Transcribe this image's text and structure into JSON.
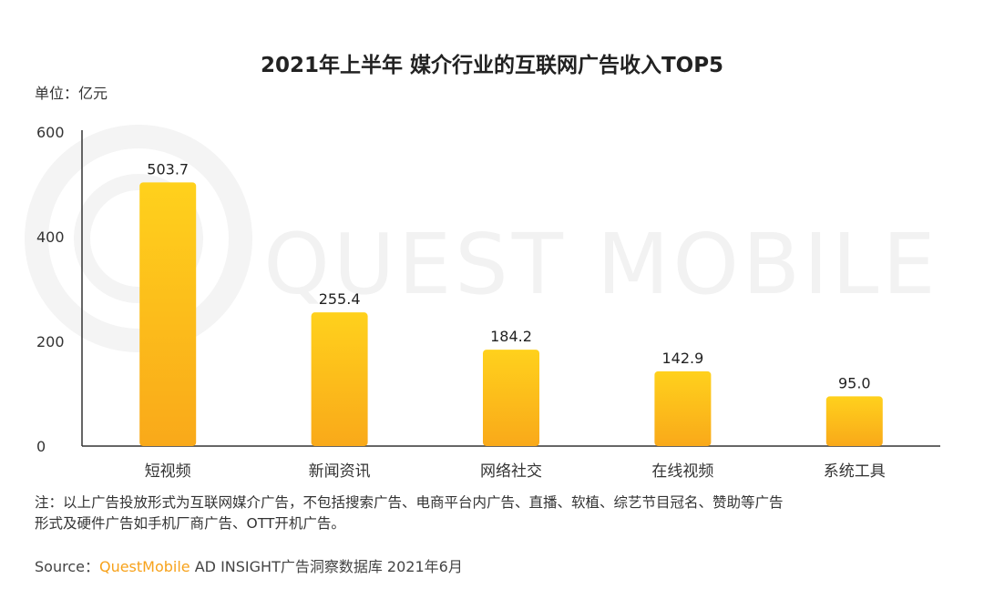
{
  "watermark": "QUEST MOBILE",
  "unit_label": "单位：亿元",
  "footnote_line1": "注：以上广告投放形式为互联网媒介广告，不包括搜索广告、电商平台内广告、直播、软植、综艺节目冠名、赞助等广告",
  "footnote_line2": "形式及硬件广告如手机厂商广告、OTT开机广告。",
  "source": {
    "prefix": "Source：",
    "brand": "QuestMobile",
    "rest": " AD INSIGHT广告洞察数据库 2021年6月"
  },
  "colors": {
    "bar_top": "#ffd11c",
    "bar_bottom": "#f9a91a",
    "axis": "#333333",
    "brand": "#f7a21b"
  },
  "chart_data": {
    "type": "bar",
    "title": "2021年上半年 媒介行业的互联网广告收入TOP5",
    "xlabel": "",
    "ylabel": "单位：亿元",
    "categories": [
      "短视频",
      "新闻资讯",
      "网络社交",
      "在线视频",
      "系统工具"
    ],
    "values": [
      503.7,
      255.4,
      184.2,
      142.9,
      95.0
    ],
    "value_labels": [
      "503.7",
      "255.4",
      "184.2",
      "142.9",
      "95.0"
    ],
    "ylim": [
      0,
      600
    ],
    "yticks": [
      0,
      200,
      400,
      600
    ],
    "grid": false,
    "legend": false
  }
}
